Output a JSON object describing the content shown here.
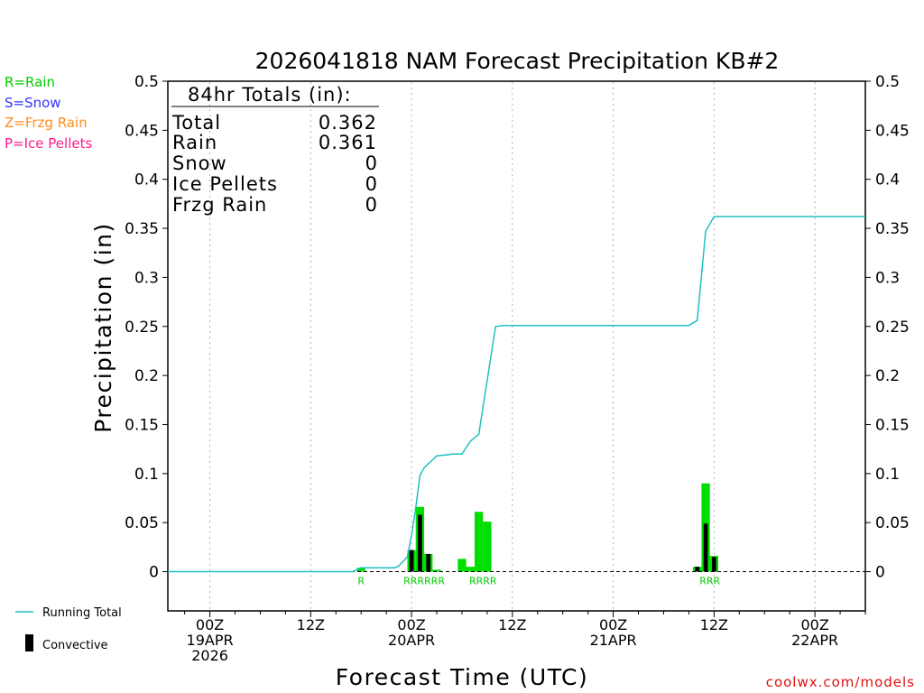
{
  "chart_data": {
    "type": "bar+line",
    "title": "2026041818 NAM Forecast Precipitation KB#2",
    "xlabel": "Forecast Time (UTC)",
    "ylabel": "Precipitation (in)",
    "ylim": [
      -0.04,
      0.5
    ],
    "xlim_hours": [
      -5,
      78
    ],
    "y_ticks": [
      {
        "v": 0,
        "label": "0"
      },
      {
        "v": 0.05,
        "label": "0.05"
      },
      {
        "v": 0.1,
        "label": "0.1"
      },
      {
        "v": 0.15,
        "label": "0.15"
      },
      {
        "v": 0.2,
        "label": "0.2"
      },
      {
        "v": 0.25,
        "label": "0.25"
      },
      {
        "v": 0.3,
        "label": "0.3"
      },
      {
        "v": 0.35,
        "label": "0.35"
      },
      {
        "v": 0.4,
        "label": "0.4"
      },
      {
        "v": 0.45,
        "label": "0.45"
      },
      {
        "v": 0.5,
        "label": "0.5"
      }
    ],
    "x_ticks": [
      {
        "h": 0,
        "lines": [
          "00Z",
          "19APR",
          "2026"
        ]
      },
      {
        "h": 12,
        "lines": [
          "12Z"
        ]
      },
      {
        "h": 24,
        "lines": [
          "00Z",
          "20APR"
        ]
      },
      {
        "h": 36,
        "lines": [
          "12Z"
        ]
      },
      {
        "h": 48,
        "lines": [
          "00Z",
          "21APR"
        ]
      },
      {
        "h": 60,
        "lines": [
          "12Z"
        ]
      },
      {
        "h": 72,
        "lines": [
          "00Z",
          "22APR"
        ]
      }
    ],
    "grid_hours": [
      0,
      12,
      24,
      36,
      48,
      60,
      72
    ],
    "precip_bars": [
      {
        "h": 18,
        "total": 0.004,
        "convective": 0.0
      },
      {
        "h": 24,
        "total": 0.022,
        "convective": 0.022
      },
      {
        "h": 25,
        "total": 0.066,
        "convective": 0.058
      },
      {
        "h": 26,
        "total": 0.018,
        "convective": 0.018
      },
      {
        "h": 27,
        "total": 0.002,
        "convective": 0.0
      },
      {
        "h": 30,
        "total": 0.013,
        "convective": 0.0
      },
      {
        "h": 31,
        "total": 0.005,
        "convective": 0.0
      },
      {
        "h": 32,
        "total": 0.061,
        "convective": 0.0
      },
      {
        "h": 33,
        "total": 0.051,
        "convective": 0.0
      },
      {
        "h": 58,
        "total": 0.005,
        "convective": 0.005
      },
      {
        "h": 59,
        "total": 0.09,
        "convective": 0.049
      },
      {
        "h": 60,
        "total": 0.016,
        "convective": 0.015
      }
    ],
    "running_total": {
      "name": "Running Total",
      "x_hours": [
        -5,
        17,
        18,
        22,
        22.5,
        23.5,
        24,
        24.5,
        25,
        25.5,
        27,
        28,
        29,
        30,
        31,
        32,
        33,
        34,
        35,
        45,
        56,
        57,
        58,
        59,
        60,
        61,
        78
      ],
      "y": [
        0,
        0,
        0.004,
        0.004,
        0.006,
        0.015,
        0.037,
        0.065,
        0.098,
        0.106,
        0.118,
        0.119,
        0.12,
        0.12,
        0.133,
        0.14,
        0.195,
        0.25,
        0.251,
        0.251,
        0.251,
        0.251,
        0.256,
        0.347,
        0.362,
        0.362,
        0.362
      ]
    },
    "ptype_labels": [
      {
        "text": "R",
        "h": 18
      },
      {
        "text": "RRRRRR",
        "h": 25.5
      },
      {
        "text": "RRRR",
        "h": 32.5
      },
      {
        "text": "RRR",
        "h": 59.5
      }
    ],
    "totals_box": {
      "heading": "84hr Totals (in):",
      "rows": [
        {
          "label": "Total",
          "value": "0.362"
        },
        {
          "label": "Rain",
          "value": "0.361"
        },
        {
          "label": "Snow",
          "value": "0"
        },
        {
          "label": "Ice Pellets",
          "value": "0"
        },
        {
          "label": "Frzg Rain",
          "value": "0"
        }
      ]
    },
    "ptype_legend": [
      {
        "text": "R=Rain",
        "color": "#00cc00"
      },
      {
        "text": "S=Snow",
        "color": "#3333ff"
      },
      {
        "text": "Z=Frzg Rain",
        "color": "#ff8c1a"
      },
      {
        "text": "P=Ice Pellets",
        "color": "#ff1a8c"
      }
    ],
    "series_legend": {
      "running_total": "Running Total",
      "convective": "Convective"
    },
    "credit": "coolwx.com/models",
    "colors": {
      "rain": "#00dd00",
      "convective": "#000000",
      "running_total": "#20c0c0",
      "axis": "#000000",
      "grid": "#b0b0b0",
      "credit": "#e01010"
    }
  }
}
